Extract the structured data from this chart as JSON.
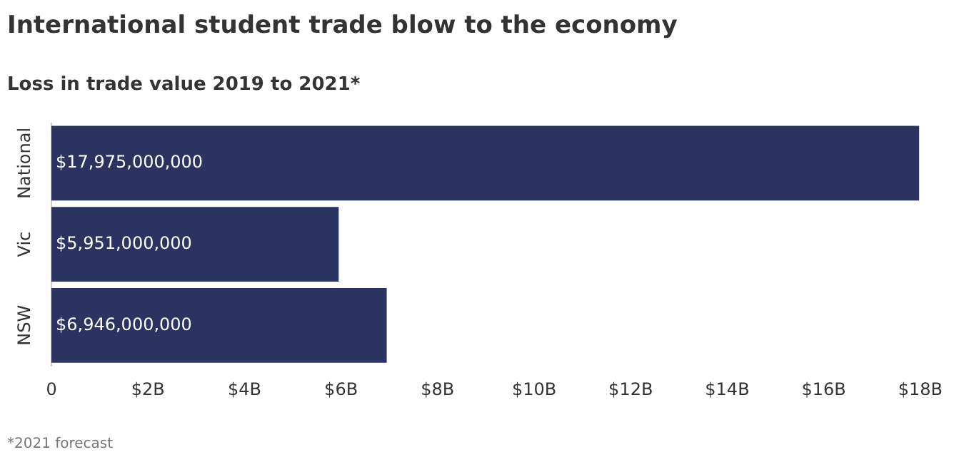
{
  "chart_data": {
    "type": "bar",
    "orientation": "horizontal",
    "title": "International student trade blow to the economy",
    "subtitle": "Loss in trade value 2019 to 2021*",
    "categories": [
      "National",
      "Vic",
      "NSW"
    ],
    "values": [
      17975000000,
      5951000000,
      6946000000
    ],
    "value_labels": [
      "$17,975,000,000",
      "$5,951,000,000",
      "$6,946,000,000"
    ],
    "color": "#2b3461",
    "xlim": [
      0,
      18000000000
    ],
    "xticks": [
      0,
      {
        "value": 2000000000,
        "label": "$2B"
      },
      {
        "value": 4000000000,
        "label": "$4B"
      },
      {
        "value": 6000000000,
        "label": "$6B"
      },
      {
        "value": 8000000000,
        "label": "$8B"
      },
      {
        "value": 10000000000,
        "label": "$10B"
      },
      {
        "value": 12000000000,
        "label": "$12B"
      },
      {
        "value": 14000000000,
        "label": "$14B"
      },
      {
        "value": 16000000000,
        "label": "$16B"
      },
      {
        "value": 18000000000,
        "label": "$18B"
      }
    ],
    "grid": false,
    "legend": false,
    "annotations": [
      "*2021 forecast"
    ]
  }
}
